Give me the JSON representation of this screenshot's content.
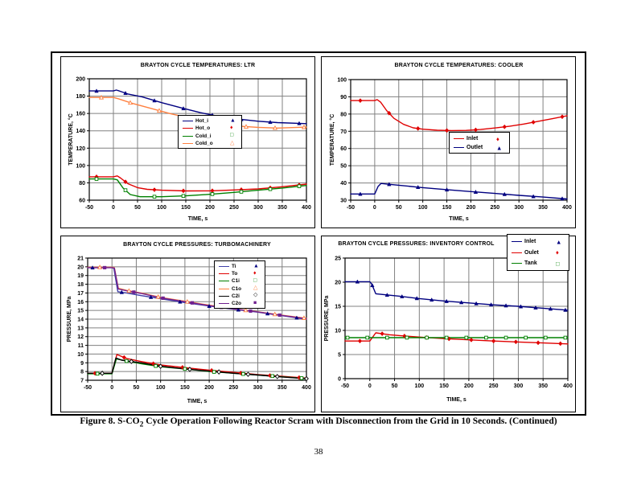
{
  "document": {
    "caption_prefix": "Figure 8. S-CO",
    "caption_sub": "2",
    "caption_rest": " Cycle Operation Following Reactor Scram with Disconnection from the Grid in 10 Seconds. (Continued)",
    "page_number": "38"
  },
  "chart_data": [
    {
      "type": "line",
      "title": "BRAYTON CYCLE TEMPERATURES: LTR",
      "xlabel": "TIME, s",
      "ylabel": "TEMPERATURE, °C",
      "xlim": [
        -50,
        400
      ],
      "x_tick_step": 50,
      "ylim": [
        60,
        200
      ],
      "y_tick_step": 20,
      "grid": true,
      "legend_position": "center-inside",
      "series": [
        {
          "name": "Hot_i",
          "color": "#000080",
          "marker": "triangle_filled",
          "marker_start": -35,
          "marker_step": 60,
          "points": [
            [
              -50,
              186
            ],
            [
              0,
              186
            ],
            [
              6,
              187
            ],
            [
              12,
              186
            ],
            [
              30,
              182.5
            ],
            [
              60,
              179
            ],
            [
              100,
              172.5
            ],
            [
              140,
              166.5
            ],
            [
              180,
              161
            ],
            [
              220,
              156.5
            ],
            [
              260,
              153.5
            ],
            [
              300,
              151
            ],
            [
              340,
              149.5
            ],
            [
              400,
              148.3
            ]
          ]
        },
        {
          "name": "Hot_o",
          "color": "#e00000",
          "marker": "diamond_filled",
          "marker_start": -35,
          "marker_step": 60,
          "points": [
            [
              -50,
              87
            ],
            [
              0,
              87
            ],
            [
              8,
              88
            ],
            [
              15,
              85.5
            ],
            [
              30,
              79
            ],
            [
              50,
              74.5
            ],
            [
              70,
              72.5
            ],
            [
              100,
              71.5
            ],
            [
              150,
              70.7
            ],
            [
              200,
              70.8
            ],
            [
              250,
              71.8
            ],
            [
              300,
              73
            ],
            [
              350,
              75.5
            ],
            [
              400,
              78.5
            ]
          ]
        },
        {
          "name": "Cold_i",
          "color": "#008000",
          "marker": "square_open",
          "marker_start": -35,
          "marker_step": 60,
          "points": [
            [
              -50,
              84.5
            ],
            [
              0,
              84.5
            ],
            [
              8,
              83.5
            ],
            [
              20,
              74
            ],
            [
              35,
              66.5
            ],
            [
              55,
              64
            ],
            [
              100,
              64
            ],
            [
              150,
              65
            ],
            [
              200,
              66.8
            ],
            [
              250,
              69
            ],
            [
              300,
              71.5
            ],
            [
              350,
              74
            ],
            [
              400,
              77
            ]
          ]
        },
        {
          "name": "Cold_o",
          "color": "#ff8040",
          "marker": "triangle_open",
          "marker_start": -25,
          "marker_step": 60,
          "points": [
            [
              -50,
              178.5
            ],
            [
              0,
              178.5
            ],
            [
              10,
              177
            ],
            [
              40,
              171.5
            ],
            [
              80,
              165.5
            ],
            [
              120,
              159.5
            ],
            [
              160,
              154.5
            ],
            [
              200,
              150
            ],
            [
              240,
              147
            ],
            [
              270,
              145
            ],
            [
              300,
              144
            ],
            [
              340,
              143.2
            ],
            [
              400,
              144.3
            ]
          ]
        }
      ]
    },
    {
      "type": "line",
      "title": "BRAYTON CYCLE TEMPERATURES: COOLER",
      "xlabel": "TIME, s",
      "ylabel": "TEMPERATURE, °C",
      "xlim": [
        -50,
        400
      ],
      "x_tick_step": 50,
      "ylim": [
        30,
        100
      ],
      "y_tick_step": 10,
      "grid": true,
      "legend_position": "center-inside",
      "series": [
        {
          "name": "Inlet",
          "color": "#e00000",
          "marker": "diamond_filled",
          "marker_start": -30,
          "marker_step": 60,
          "points": [
            [
              -50,
              87.8
            ],
            [
              0,
              87.8
            ],
            [
              5,
              88.4
            ],
            [
              12,
              87
            ],
            [
              25,
              82
            ],
            [
              40,
              77.5
            ],
            [
              60,
              74
            ],
            [
              80,
              72
            ],
            [
              100,
              71.2
            ],
            [
              130,
              70.6
            ],
            [
              160,
              70.4
            ],
            [
              190,
              70.5
            ],
            [
              220,
              71
            ],
            [
              250,
              71.9
            ],
            [
              280,
              72.9
            ],
            [
              310,
              74.2
            ],
            [
              340,
              75.8
            ],
            [
              370,
              77.3
            ],
            [
              400,
              79
            ]
          ]
        },
        {
          "name": "Outlet",
          "color": "#000080",
          "marker": "triangle_filled",
          "marker_start": -30,
          "marker_step": 60,
          "points": [
            [
              -50,
              33.6
            ],
            [
              0,
              33.6
            ],
            [
              7,
              38
            ],
            [
              13,
              39.7
            ],
            [
              25,
              39.4
            ],
            [
              50,
              38.7
            ],
            [
              100,
              37.3
            ],
            [
              150,
              36.1
            ],
            [
              200,
              35
            ],
            [
              250,
              33.9
            ],
            [
              300,
              32.8
            ],
            [
              350,
              31.8
            ],
            [
              400,
              30.7
            ]
          ]
        }
      ]
    },
    {
      "type": "line",
      "title": "BRAYTON CYCLE PRESSURES: TURBOMACHINERY",
      "xlabel": "TIME, s",
      "ylabel": "PRESSURE, MPa",
      "xlim": [
        -50,
        400
      ],
      "x_tick_step": 50,
      "ylim": [
        7,
        21
      ],
      "y_tick_step": 1,
      "grid": true,
      "legend_position": "upper-right-inside",
      "series": [
        {
          "name": "Ti",
          "color": "#4040a8",
          "marker": "triangle_filled",
          "marker_color": "#000080",
          "marker_start": -40,
          "marker_step": 60,
          "points": [
            [
              -50,
              19.9
            ],
            [
              0,
              19.9
            ],
            [
              4,
              19.8
            ],
            [
              12,
              17.15
            ],
            [
              30,
              17
            ],
            [
              60,
              16.7
            ],
            [
              100,
              16.35
            ],
            [
              150,
              15.9
            ],
            [
              200,
              15.5
            ],
            [
              250,
              15.15
            ],
            [
              300,
              14.8
            ],
            [
              350,
              14.4
            ],
            [
              400,
              14
            ]
          ]
        },
        {
          "name": "To",
          "color": "#e00000",
          "marker": "diamond_filled",
          "marker_start": -35,
          "marker_step": 60,
          "points": [
            [
              -50,
              7.8
            ],
            [
              0,
              7.8
            ],
            [
              10,
              9.95
            ],
            [
              30,
              9.5
            ],
            [
              60,
              9.15
            ],
            [
              100,
              8.75
            ],
            [
              150,
              8.45
            ],
            [
              200,
              8.15
            ],
            [
              250,
              7.9
            ],
            [
              300,
              7.65
            ],
            [
              350,
              7.45
            ],
            [
              400,
              7.25
            ]
          ]
        },
        {
          "name": "C1i",
          "color": "#008000",
          "marker": "square_open",
          "marker_start": -30,
          "marker_step": 60,
          "points": [
            [
              -50,
              7.75
            ],
            [
              0,
              7.75
            ],
            [
              9,
              9.45
            ],
            [
              30,
              9.2
            ],
            [
              60,
              8.9
            ],
            [
              100,
              8.55
            ],
            [
              150,
              8.3
            ],
            [
              200,
              8
            ],
            [
              250,
              7.8
            ],
            [
              300,
              7.6
            ],
            [
              350,
              7.4
            ],
            [
              400,
              7.2
            ]
          ]
        },
        {
          "name": "C1o",
          "color": "#ff8040",
          "marker": "triangle_open",
          "marker_start": -25,
          "marker_step": 60,
          "points": [
            [
              -50,
              19.95
            ],
            [
              0,
              19.95
            ],
            [
              5,
              19.9
            ],
            [
              13,
              17.55
            ],
            [
              30,
              17.3
            ],
            [
              60,
              17
            ],
            [
              100,
              16.5
            ],
            [
              150,
              16.05
            ],
            [
              200,
              15.6
            ],
            [
              250,
              15.2
            ],
            [
              300,
              14.85
            ],
            [
              350,
              14.45
            ],
            [
              400,
              14.1
            ]
          ]
        },
        {
          "name": "C2i",
          "color": "#000000",
          "marker": "diamond_open",
          "marker_start": -20,
          "marker_step": 60,
          "points": [
            [
              -50,
              7.8
            ],
            [
              0,
              7.8
            ],
            [
              8,
              9.55
            ],
            [
              20,
              9.3
            ],
            [
              60,
              9
            ],
            [
              100,
              8.6
            ],
            [
              150,
              8.3
            ],
            [
              200,
              8.05
            ],
            [
              250,
              7.8
            ],
            [
              300,
              7.6
            ],
            [
              350,
              7.38
            ],
            [
              400,
              7.18
            ]
          ]
        },
        {
          "name": "C2o",
          "color": "#702090",
          "marker": "square_filled",
          "marker_start": -15,
          "marker_step": 60,
          "points": [
            [
              -50,
              19.9
            ],
            [
              0,
              19.9
            ],
            [
              5,
              19.85
            ],
            [
              13,
              17.45
            ],
            [
              30,
              17.25
            ],
            [
              60,
              16.95
            ],
            [
              100,
              16.45
            ],
            [
              150,
              16
            ],
            [
              200,
              15.55
            ],
            [
              250,
              15.18
            ],
            [
              300,
              14.82
            ],
            [
              350,
              14.42
            ],
            [
              400,
              14.05
            ]
          ]
        }
      ]
    },
    {
      "type": "line",
      "title": "BRAYTON CYCLE PRESSURES: INVENTORY CONTROL",
      "xlabel": "TIME, s",
      "ylabel": "PRESSURE, MPa",
      "xlim": [
        -50,
        400
      ],
      "x_tick_step": 50,
      "ylim": [
        0,
        25
      ],
      "y_tick_step": 5,
      "grid": true,
      "legend_position": "upper-right-outside",
      "series": [
        {
          "name": "Inlet",
          "color": "#000080",
          "marker": "triangle_filled",
          "marker_start": -25,
          "marker_step": 30,
          "points": [
            [
              -50,
              20.1
            ],
            [
              0,
              20.1
            ],
            [
              4,
              19.6
            ],
            [
              12,
              17.6
            ],
            [
              30,
              17.4
            ],
            [
              60,
              17.1
            ],
            [
              100,
              16.6
            ],
            [
              150,
              16.1
            ],
            [
              200,
              15.7
            ],
            [
              250,
              15.3
            ],
            [
              300,
              15
            ],
            [
              350,
              14.6
            ],
            [
              400,
              14.2
            ]
          ]
        },
        {
          "name": "Oulet",
          "color": "#e00000",
          "marker": "diamond_filled",
          "marker_start": -20,
          "marker_step": 45,
          "points": [
            [
              -50,
              7.8
            ],
            [
              0,
              7.8
            ],
            [
              12,
              9.5
            ],
            [
              40,
              9.1
            ],
            [
              75,
              8.8
            ],
            [
              110,
              8.55
            ],
            [
              150,
              8.3
            ],
            [
              200,
              8.05
            ],
            [
              250,
              7.8
            ],
            [
              300,
              7.6
            ],
            [
              350,
              7.4
            ],
            [
              400,
              7.2
            ]
          ]
        },
        {
          "name": "Tank",
          "color": "#008000",
          "marker": "square_open",
          "marker_start": -45,
          "marker_step": 40,
          "points": [
            [
              -50,
              8.5
            ],
            [
              400,
              8.5
            ]
          ]
        }
      ]
    }
  ],
  "style": {
    "grid_color": "#808080",
    "axis_color": "#000000",
    "panel_background": "#ffffff"
  }
}
